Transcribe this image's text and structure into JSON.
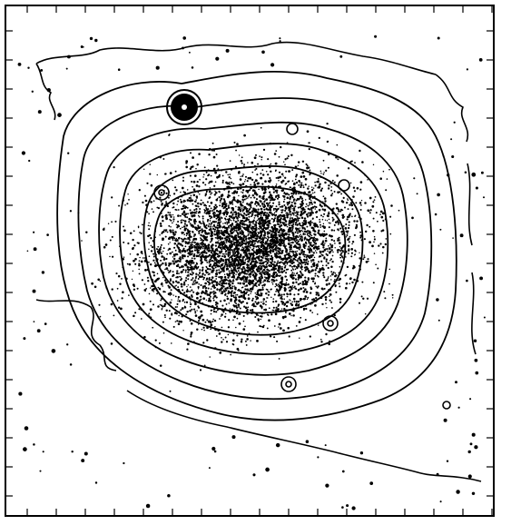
{
  "figure": {
    "kind": "astronomical-isophote-contour-map",
    "ink_color": "#000000",
    "background_color": "#ffffff",
    "axes_tick_labels": "none"
  }
}
